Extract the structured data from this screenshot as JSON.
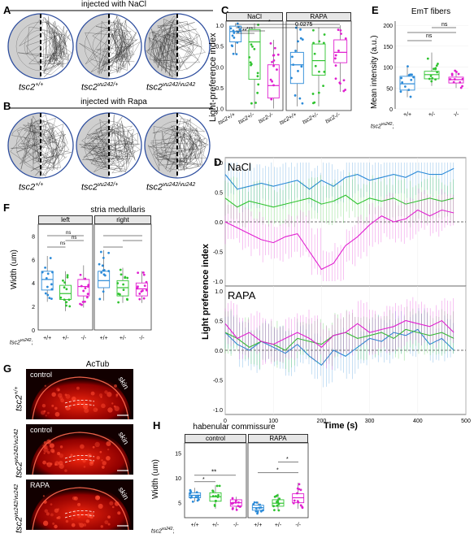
{
  "panels": {
    "A": {
      "letter": "A",
      "title": "injected with NaCl",
      "genotypes": [
        "tsc2",
        "tsc2",
        "tsc2"
      ],
      "genotype_sups": [
        "+/+",
        "vu242/+",
        "vu242/vu242"
      ]
    },
    "B": {
      "letter": "B",
      "title": "injected with Rapa",
      "genotypes": [
        "tsc2",
        "tsc2",
        "tsc2"
      ],
      "genotype_sups": [
        "+/+",
        "vu242/+",
        "vu242/vu242"
      ]
    },
    "C": {
      "letter": "C",
      "ylabel": "Light-preference index",
      "strips": [
        "NaCl",
        "RAPA"
      ],
      "pvalue": "0.0275",
      "stars": [
        "*",
        "**",
        "***"
      ],
      "xticks": [
        "tsc2+/+",
        "tsc2+/-",
        "tsc2-/-"
      ],
      "yticks": [
        "1.0",
        "0.5",
        "0.0",
        "-0.5",
        "-1.0"
      ]
    },
    "D": {
      "letter": "D",
      "ylabel": "Light preference index",
      "xlabel": "Time (s)",
      "sub1": "NaCl",
      "sub2": "RAPA",
      "yticks": [
        "1.0",
        "0.5",
        "0.0",
        "-0.5",
        "-1.0"
      ],
      "xticks": [
        "0",
        "100",
        "200",
        "300",
        "400",
        "500"
      ]
    },
    "E": {
      "letter": "E",
      "title": "EmT fibers",
      "ylabel": "Mean intensity (a.u.)",
      "ns": [
        "ns",
        "ns"
      ],
      "yticks": [
        "200",
        "150",
        "100",
        "50",
        "0"
      ],
      "xticks": [
        "+/+",
        "+/-",
        "-/-"
      ],
      "geno_prefix": "tsc2",
      "geno_sup": "vu242"
    },
    "F": {
      "letter": "F",
      "title": "stria medullaris",
      "ylabel": "Width (um)",
      "strips": [
        "left",
        "right"
      ],
      "ns": [
        "ns",
        "ns",
        "ns"
      ],
      "yticks": [
        "8",
        "6",
        "4",
        "2",
        "0"
      ],
      "xticks": [
        "+/+",
        "+/-",
        "-/-"
      ],
      "geno_prefix": "tsc2",
      "geno_sup": "vu242"
    },
    "G": {
      "letter": "G",
      "title": "AcTub",
      "rows": [
        {
          "condition": "control",
          "genotype": "tsc2",
          "sup": "+/+",
          "tissue": "skin"
        },
        {
          "condition": "control",
          "genotype": "tsc2",
          "sup": "vu242/vu242",
          "tissue": "skin"
        },
        {
          "condition": "RAPA",
          "genotype": "tsc2",
          "sup": "vu242/vu242",
          "tissue": "skin"
        }
      ]
    },
    "H": {
      "letter": "H",
      "title": "habenular commissure",
      "ylabel": "Width (um)",
      "strips": [
        "control",
        "RAPA"
      ],
      "stars_left": [
        "*",
        "**"
      ],
      "stars_right": [
        "*",
        "*"
      ],
      "yticks": [
        "15",
        "10",
        "5"
      ],
      "xticks": [
        "+/+",
        "+/-",
        "-/-"
      ],
      "geno_prefix": "tsc2",
      "geno_sup": "vu242"
    }
  },
  "colors": {
    "wt": "#2b8ad8",
    "het": "#2fc32f",
    "hom": "#e020d0"
  },
  "chart_data": [
    {
      "type": "box",
      "panel": "C",
      "ylabel": "Light-preference index",
      "ylim": [
        -1.05,
        1.1
      ],
      "facets": [
        "NaCl",
        "RAPA"
      ],
      "categories": [
        "tsc2+/+",
        "tsc2+/-",
        "tsc2-/-"
      ],
      "series": [
        {
          "facet": "NaCl",
          "medians": [
            0.85,
            0.6,
            -0.45
          ],
          "q1": [
            0.6,
            -0.3,
            -0.75
          ],
          "q3": [
            0.98,
            0.9,
            0.05
          ],
          "whisker_lo": [
            0.3,
            -1.0,
            -1.0
          ],
          "whisker_hi": [
            1.05,
            1.05,
            0.65
          ]
        },
        {
          "facet": "RAPA",
          "medians": [
            0.05,
            0.15,
            0.35
          ],
          "q1": [
            -0.4,
            -0.2,
            0.1
          ],
          "q3": [
            0.35,
            0.55,
            0.65
          ],
          "whisker_lo": [
            -0.95,
            -0.95,
            -0.6
          ],
          "whisker_hi": [
            1.0,
            0.95,
            1.0
          ]
        }
      ]
    },
    {
      "type": "box",
      "panel": "E",
      "ylabel": "Mean intensity (a.u.)",
      "ylim": [
        0,
        210
      ],
      "categories": [
        "+/+",
        "+/-",
        "-/-"
      ],
      "medians": [
        60,
        82,
        70
      ],
      "q1": [
        45,
        72,
        62
      ],
      "q3": [
        78,
        90,
        76
      ],
      "whisker_lo": [
        28,
        55,
        50
      ],
      "whisker_hi": [
        102,
        135,
        92
      ]
    },
    {
      "type": "box",
      "panel": "F",
      "ylabel": "Width (um)",
      "ylim": [
        0,
        9
      ],
      "facets": [
        "left",
        "right"
      ],
      "categories": [
        "+/+",
        "+/-",
        "-/-"
      ],
      "series": [
        {
          "facet": "left",
          "medians": [
            4.3,
            3.1,
            3.7
          ],
          "q1": [
            3.4,
            2.6,
            2.9
          ],
          "q3": [
            5.0,
            3.8,
            4.3
          ],
          "whisker_lo": [
            2.4,
            1.6,
            1.9
          ],
          "whisker_hi": [
            6.3,
            5.0,
            5.5
          ]
        },
        {
          "facet": "right",
          "medians": [
            4.2,
            3.6,
            3.5
          ],
          "q1": [
            3.6,
            2.9,
            2.9
          ],
          "q3": [
            5.0,
            4.2,
            4.0
          ],
          "whisker_lo": [
            2.5,
            2.3,
            2.3
          ],
          "whisker_hi": [
            6.8,
            5.3,
            5.0
          ]
        }
      ]
    },
    {
      "type": "line",
      "panel": "D",
      "xlabel": "Time (s)",
      "ylabel": "Light preference index",
      "xlim": [
        0,
        500
      ],
      "ylim": [
        -1,
        1
      ],
      "facets": [
        "NaCl",
        "RAPA"
      ],
      "x": [
        0,
        25,
        50,
        75,
        100,
        125,
        150,
        175,
        200,
        225,
        250,
        275,
        300,
        325,
        350,
        375,
        400,
        425,
        450,
        475
      ],
      "series": [
        {
          "facet": "NaCl",
          "name": "+/+",
          "values": [
            0.8,
            0.55,
            0.6,
            0.65,
            0.6,
            0.65,
            0.7,
            0.55,
            0.7,
            0.6,
            0.75,
            0.8,
            0.7,
            0.75,
            0.8,
            0.75,
            0.85,
            0.8,
            0.8,
            0.9
          ]
        },
        {
          "facet": "NaCl",
          "name": "+/-",
          "values": [
            0.4,
            0.25,
            0.35,
            0.3,
            0.25,
            0.3,
            0.35,
            0.4,
            0.3,
            0.35,
            0.45,
            0.3,
            0.4,
            0.35,
            0.4,
            0.3,
            0.35,
            0.4,
            0.35,
            0.4
          ]
        },
        {
          "facet": "NaCl",
          "name": "-/-",
          "values": [
            0.0,
            -0.1,
            -0.2,
            -0.3,
            -0.35,
            -0.25,
            -0.2,
            -0.5,
            -0.8,
            -0.7,
            -0.4,
            -0.25,
            -0.05,
            0.1,
            0.0,
            0.05,
            0.2,
            0.1,
            0.2,
            0.15
          ]
        },
        {
          "facet": "RAPA",
          "name": "+/+",
          "values": [
            0.3,
            0.1,
            0.0,
            0.15,
            0.05,
            -0.05,
            0.1,
            -0.1,
            -0.25,
            0.0,
            -0.1,
            0.05,
            0.2,
            0.15,
            0.3,
            0.25,
            0.35,
            0.1,
            0.2,
            0.0
          ]
        },
        {
          "facet": "RAPA",
          "name": "+/-",
          "values": [
            0.3,
            0.2,
            0.05,
            0.15,
            0.1,
            0.0,
            0.2,
            0.15,
            0.1,
            0.25,
            0.3,
            0.2,
            0.25,
            0.3,
            0.2,
            0.35,
            0.3,
            0.25,
            0.3,
            0.2
          ]
        },
        {
          "facet": "RAPA",
          "name": "-/-",
          "values": [
            0.45,
            0.2,
            0.3,
            0.15,
            0.1,
            0.2,
            0.3,
            0.2,
            0.05,
            0.25,
            0.3,
            0.45,
            0.3,
            0.35,
            0.4,
            0.5,
            0.45,
            0.4,
            0.5,
            0.3
          ]
        }
      ]
    },
    {
      "type": "box",
      "panel": "H",
      "ylabel": "Width (um)",
      "ylim": [
        2,
        17
      ],
      "facets": [
        "control",
        "RAPA"
      ],
      "categories": [
        "+/+",
        "+/-",
        "-/-"
      ],
      "series": [
        {
          "facet": "control",
          "medians": [
            6.5,
            6.2,
            5.0
          ],
          "q1": [
            6.0,
            5.3,
            4.3
          ],
          "q3": [
            7.0,
            7.0,
            5.6
          ],
          "whisker_lo": [
            5.2,
            3.8,
            3.5
          ],
          "whisker_hi": [
            8.0,
            8.5,
            6.2
          ]
        },
        {
          "facet": "RAPA",
          "medians": [
            4.0,
            4.9,
            6.0
          ],
          "q1": [
            3.5,
            4.3,
            5.0
          ],
          "q3": [
            4.5,
            5.6,
            6.8
          ],
          "whisker_lo": [
            2.8,
            3.3,
            3.8
          ],
          "whisker_hi": [
            5.2,
            6.8,
            9.0
          ]
        }
      ]
    }
  ]
}
